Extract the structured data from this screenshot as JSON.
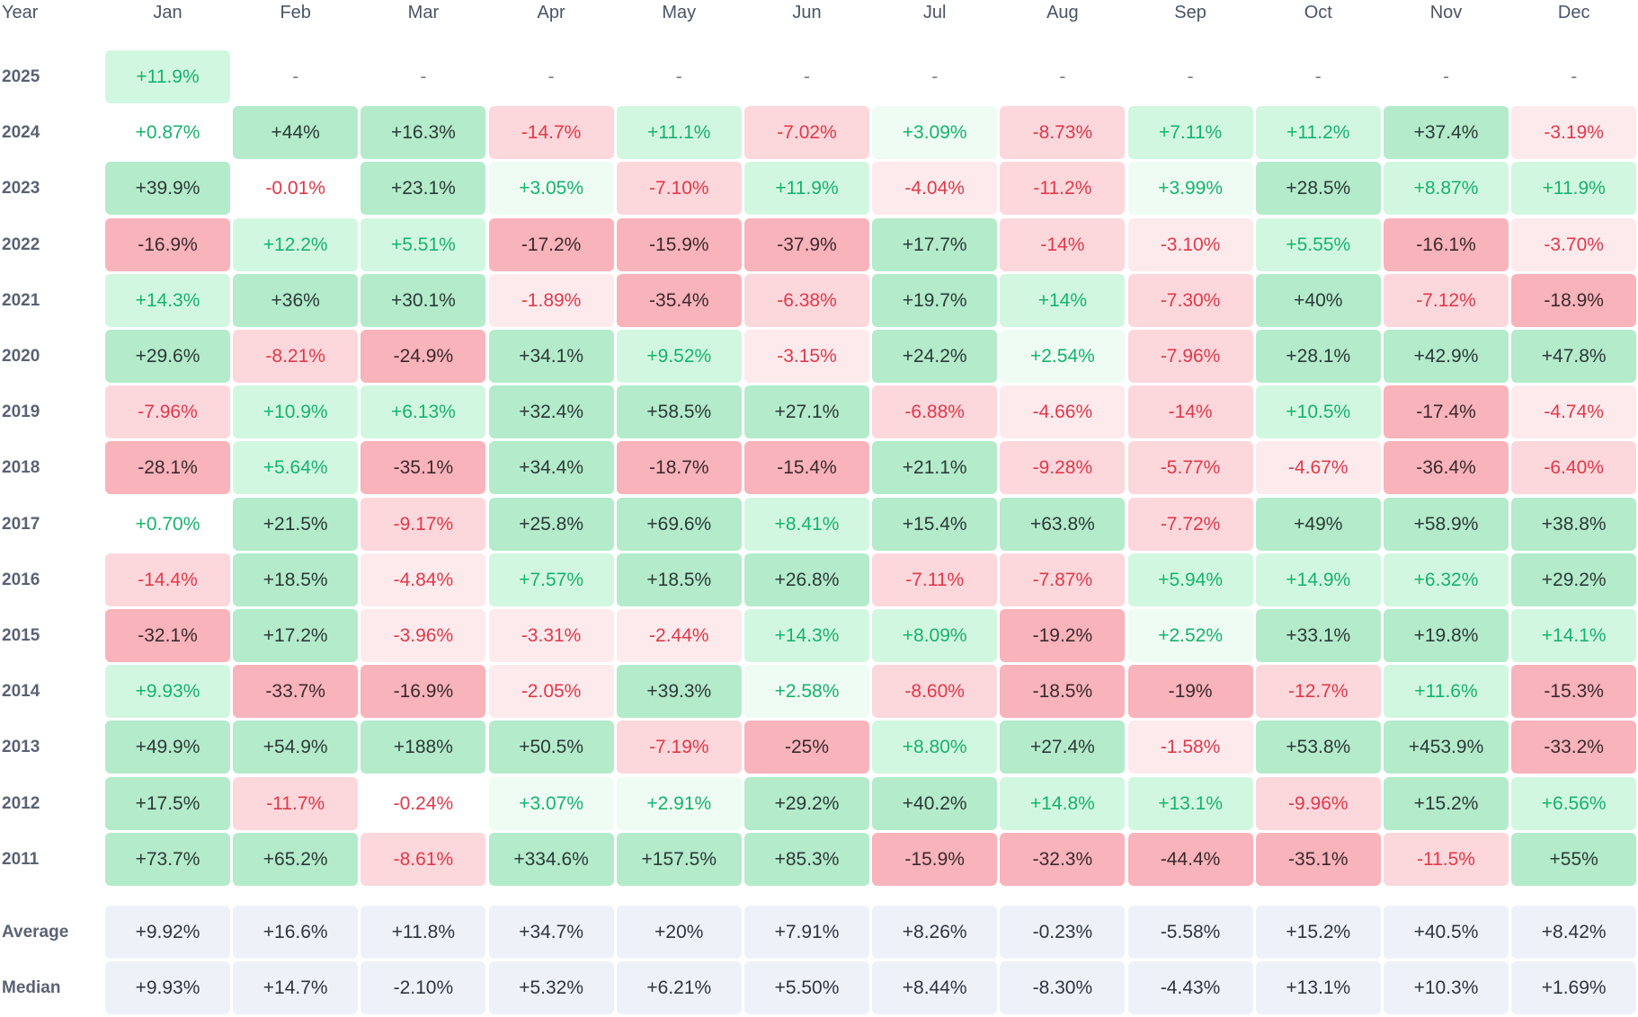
{
  "chart_data": {
    "type": "heatmap",
    "title": "",
    "year_header": "Year",
    "months": [
      "Jan",
      "Feb",
      "Mar",
      "Apr",
      "May",
      "Jun",
      "Jul",
      "Aug",
      "Sep",
      "Oct",
      "Nov",
      "Dec"
    ],
    "rows": [
      {
        "year": "2025",
        "values": [
          11.9,
          null,
          null,
          null,
          null,
          null,
          null,
          null,
          null,
          null,
          null,
          null
        ],
        "labels": [
          "+11.9%",
          "-",
          "-",
          "-",
          "-",
          "-",
          "-",
          "-",
          "-",
          "-",
          "-",
          "-"
        ]
      },
      {
        "year": "2024",
        "values": [
          0.87,
          44,
          16.3,
          -14.7,
          11.1,
          -7.02,
          3.09,
          -8.73,
          7.11,
          11.2,
          37.4,
          -3.19
        ],
        "labels": [
          "+0.87%",
          "+44%",
          "+16.3%",
          "-14.7%",
          "+11.1%",
          "-7.02%",
          "+3.09%",
          "-8.73%",
          "+7.11%",
          "+11.2%",
          "+37.4%",
          "-3.19%"
        ]
      },
      {
        "year": "2023",
        "values": [
          39.9,
          -0.01,
          23.1,
          3.05,
          -7.1,
          11.9,
          -4.04,
          -11.2,
          3.99,
          28.5,
          8.87,
          11.9
        ],
        "labels": [
          "+39.9%",
          "-0.01%",
          "+23.1%",
          "+3.05%",
          "-7.10%",
          "+11.9%",
          "-4.04%",
          "-11.2%",
          "+3.99%",
          "+28.5%",
          "+8.87%",
          "+11.9%"
        ]
      },
      {
        "year": "2022",
        "values": [
          -16.9,
          12.2,
          5.51,
          -17.2,
          -15.9,
          -37.9,
          17.7,
          -14,
          -3.1,
          5.55,
          -16.1,
          -3.7
        ],
        "labels": [
          "-16.9%",
          "+12.2%",
          "+5.51%",
          "-17.2%",
          "-15.9%",
          "-37.9%",
          "+17.7%",
          "-14%",
          "-3.10%",
          "+5.55%",
          "-16.1%",
          "-3.70%"
        ]
      },
      {
        "year": "2021",
        "values": [
          14.3,
          36,
          30.1,
          -1.89,
          -35.4,
          -6.38,
          19.7,
          14,
          -7.3,
          40,
          -7.12,
          -18.9
        ],
        "labels": [
          "+14.3%",
          "+36%",
          "+30.1%",
          "-1.89%",
          "-35.4%",
          "-6.38%",
          "+19.7%",
          "+14%",
          "-7.30%",
          "+40%",
          "-7.12%",
          "-18.9%"
        ]
      },
      {
        "year": "2020",
        "values": [
          29.6,
          -8.21,
          -24.9,
          34.1,
          9.52,
          -3.15,
          24.2,
          2.54,
          -7.96,
          28.1,
          42.9,
          47.8
        ],
        "labels": [
          "+29.6%",
          "-8.21%",
          "-24.9%",
          "+34.1%",
          "+9.52%",
          "-3.15%",
          "+24.2%",
          "+2.54%",
          "-7.96%",
          "+28.1%",
          "+42.9%",
          "+47.8%"
        ]
      },
      {
        "year": "2019",
        "values": [
          -7.96,
          10.9,
          6.13,
          32.4,
          58.5,
          27.1,
          -6.88,
          -4.66,
          -14,
          10.5,
          -17.4,
          -4.74
        ],
        "labels": [
          "-7.96%",
          "+10.9%",
          "+6.13%",
          "+32.4%",
          "+58.5%",
          "+27.1%",
          "-6.88%",
          "-4.66%",
          "-14%",
          "+10.5%",
          "-17.4%",
          "-4.74%"
        ]
      },
      {
        "year": "2018",
        "values": [
          -28.1,
          5.64,
          -35.1,
          34.4,
          -18.7,
          -15.4,
          21.1,
          -9.28,
          -5.77,
          -4.67,
          -36.4,
          -6.4
        ],
        "labels": [
          "-28.1%",
          "+5.64%",
          "-35.1%",
          "+34.4%",
          "-18.7%",
          "-15.4%",
          "+21.1%",
          "-9.28%",
          "-5.77%",
          "-4.67%",
          "-36.4%",
          "-6.40%"
        ]
      },
      {
        "year": "2017",
        "values": [
          0.7,
          21.5,
          -9.17,
          25.8,
          69.6,
          8.41,
          15.4,
          63.8,
          -7.72,
          49,
          58.9,
          38.8
        ],
        "labels": [
          "+0.70%",
          "+21.5%",
          "-9.17%",
          "+25.8%",
          "+69.6%",
          "+8.41%",
          "+15.4%",
          "+63.8%",
          "-7.72%",
          "+49%",
          "+58.9%",
          "+38.8%"
        ]
      },
      {
        "year": "2016",
        "values": [
          -14.4,
          18.5,
          -4.84,
          7.57,
          18.5,
          26.8,
          -7.11,
          -7.87,
          5.94,
          14.9,
          6.32,
          29.2
        ],
        "labels": [
          "-14.4%",
          "+18.5%",
          "-4.84%",
          "+7.57%",
          "+18.5%",
          "+26.8%",
          "-7.11%",
          "-7.87%",
          "+5.94%",
          "+14.9%",
          "+6.32%",
          "+29.2%"
        ]
      },
      {
        "year": "2015",
        "values": [
          -32.1,
          17.2,
          -3.96,
          -3.31,
          -2.44,
          14.3,
          8.09,
          -19.2,
          2.52,
          33.1,
          19.8,
          14.1
        ],
        "labels": [
          "-32.1%",
          "+17.2%",
          "-3.96%",
          "-3.31%",
          "-2.44%",
          "+14.3%",
          "+8.09%",
          "-19.2%",
          "+2.52%",
          "+33.1%",
          "+19.8%",
          "+14.1%"
        ]
      },
      {
        "year": "2014",
        "values": [
          9.93,
          -33.7,
          -16.9,
          -2.05,
          39.3,
          2.58,
          -8.6,
          -18.5,
          -19,
          -12.7,
          11.6,
          -15.3
        ],
        "labels": [
          "+9.93%",
          "-33.7%",
          "-16.9%",
          "-2.05%",
          "+39.3%",
          "+2.58%",
          "-8.60%",
          "-18.5%",
          "-19%",
          "-12.7%",
          "+11.6%",
          "-15.3%"
        ]
      },
      {
        "year": "2013",
        "values": [
          49.9,
          54.9,
          188,
          50.5,
          -7.19,
          -25,
          8.8,
          27.4,
          -1.58,
          53.8,
          453.9,
          -33.2
        ],
        "labels": [
          "+49.9%",
          "+54.9%",
          "+188%",
          "+50.5%",
          "-7.19%",
          "-25%",
          "+8.80%",
          "+27.4%",
          "-1.58%",
          "+53.8%",
          "+453.9%",
          "-33.2%"
        ]
      },
      {
        "year": "2012",
        "values": [
          17.5,
          -11.7,
          -0.24,
          3.07,
          2.91,
          29.2,
          40.2,
          14.8,
          13.1,
          -9.96,
          15.2,
          6.56
        ],
        "labels": [
          "+17.5%",
          "-11.7%",
          "-0.24%",
          "+3.07%",
          "+2.91%",
          "+29.2%",
          "+40.2%",
          "+14.8%",
          "+13.1%",
          "-9.96%",
          "+15.2%",
          "+6.56%"
        ]
      },
      {
        "year": "2011",
        "values": [
          73.7,
          65.2,
          -8.61,
          334.6,
          157.5,
          85.3,
          -15.9,
          -32.3,
          -44.4,
          -35.1,
          -11.5,
          55
        ],
        "labels": [
          "+73.7%",
          "+65.2%",
          "-8.61%",
          "+334.6%",
          "+157.5%",
          "+85.3%",
          "-15.9%",
          "-32.3%",
          "-44.4%",
          "-35.1%",
          "-11.5%",
          "+55%"
        ]
      }
    ],
    "summary_rows": [
      {
        "label": "Average",
        "values": [
          9.92,
          16.6,
          11.8,
          34.7,
          20,
          7.91,
          8.26,
          -0.23,
          -5.58,
          15.2,
          40.5,
          8.42
        ],
        "labels": [
          "+9.92%",
          "+16.6%",
          "+11.8%",
          "+34.7%",
          "+20%",
          "+7.91%",
          "+8.26%",
          "-0.23%",
          "-5.58%",
          "+15.2%",
          "+40.5%",
          "+8.42%"
        ]
      },
      {
        "label": "Median",
        "values": [
          9.93,
          14.7,
          -2.1,
          5.32,
          6.21,
          5.5,
          8.44,
          -8.3,
          -4.43,
          13.1,
          10.3,
          1.69
        ],
        "labels": [
          "+9.93%",
          "+14.7%",
          "-2.10%",
          "+5.32%",
          "+6.21%",
          "+5.50%",
          "+8.44%",
          "-8.30%",
          "-4.43%",
          "+13.1%",
          "+10.3%",
          "+1.69%"
        ]
      }
    ],
    "colors": {
      "pos_text_light": "#16b36e",
      "pos_text_dark": "#2c3a36",
      "neg_text_light": "#e0394b",
      "neg_text_dark": "#3a2a2c",
      "pos_bg_1": "#eefcf3",
      "pos_bg_2": "#d2f7e0",
      "pos_bg_3": "#b3ebcb",
      "neg_bg_1": "#fdeaec",
      "neg_bg_2": "#fcd7db",
      "neg_bg_3": "#f9b3ba",
      "summary_bg": "#eef2f8",
      "summary_text": "#2e3440",
      "dash_text": "#7a8090"
    }
  }
}
